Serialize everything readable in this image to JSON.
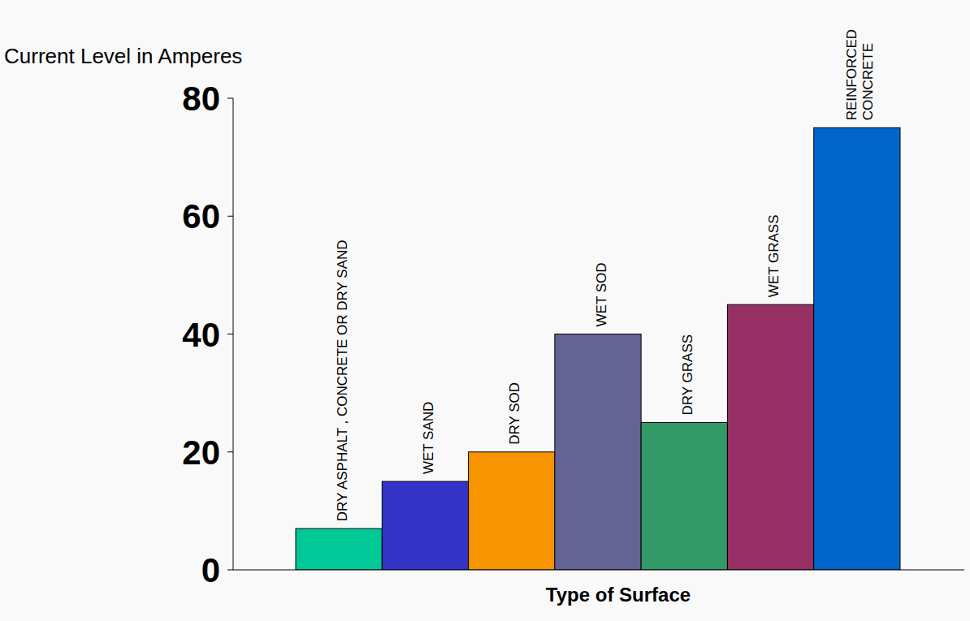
{
  "chart_data": {
    "type": "bar",
    "ylabel": "Current Level in Amperes",
    "xlabel": "Type of Surface",
    "categories": [
      "DRY ASPHALT , CONCRETE OR DRY SAND",
      "WET SAND",
      "DRY SOD",
      "WET SOD",
      "DRY GRASS",
      "WET GRASS",
      "REINFORCED\nCONCRETE"
    ],
    "values": [
      7,
      15,
      20,
      40,
      25,
      45,
      75
    ],
    "colors": [
      "#00c896",
      "#3333c8",
      "#f79500",
      "#636394",
      "#339966",
      "#963064",
      "#0066cc"
    ],
    "ylim": [
      0,
      80
    ],
    "yticks": [
      0,
      20,
      40,
      60,
      80
    ],
    "grid": false
  }
}
